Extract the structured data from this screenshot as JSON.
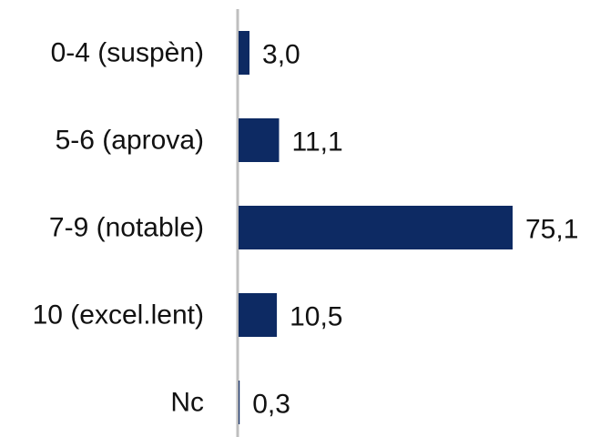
{
  "chart_data": {
    "type": "bar",
    "orientation": "horizontal",
    "categories": [
      "0-4 (suspèn)",
      "5-6 (aprova)",
      "7-9 (notable)",
      "10 (excel.lent)",
      "Nc"
    ],
    "values": [
      3.0,
      11.1,
      75.1,
      10.5,
      0.3
    ],
    "value_labels": [
      "3,0",
      "11,1",
      "75,1",
      "10,5",
      "0,3"
    ],
    "title": "",
    "xlabel": "",
    "ylabel": "",
    "xlim": [
      0,
      75.1
    ],
    "grid": false,
    "legend": "none",
    "bar_color": "#0d2a63",
    "axis_color": "#bfbfbf"
  }
}
